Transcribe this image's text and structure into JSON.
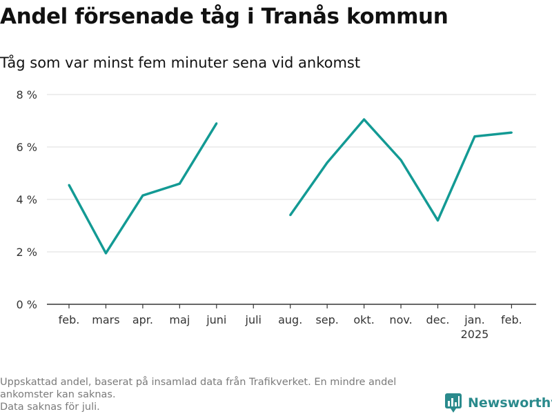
{
  "header": {
    "title": "Andel försenade tåg i Tranås kommun",
    "subtitle": "Tåg som var minst fem minuter sena vid ankomst"
  },
  "chart_data": {
    "type": "line",
    "title": "Andel försenade tåg i Tranås kommun",
    "subtitle": "Tåg som var minst fem minuter sena vid ankomst",
    "xlabel": "",
    "ylabel": "",
    "categories": [
      "feb.",
      "mars",
      "apr.",
      "maj",
      "juni",
      "juli",
      "aug.",
      "sep.",
      "okt.",
      "nov.",
      "dec.",
      "jan.",
      "feb."
    ],
    "x_sublabels": [
      "",
      "",
      "",
      "",
      "",
      "",
      "",
      "",
      "",
      "",
      "",
      "2025",
      ""
    ],
    "series": [
      {
        "values": [
          4.55,
          1.95,
          4.15,
          4.6,
          6.9,
          null,
          3.4,
          5.4,
          7.05,
          5.5,
          3.2,
          6.4,
          6.55
        ],
        "color": "#139a94"
      }
    ],
    "ylim": [
      0,
      8
    ],
    "yticks": [
      0,
      2,
      4,
      6,
      8
    ],
    "ytick_labels": [
      "0 %",
      "2 %",
      "4 %",
      "6 %",
      "8 %"
    ],
    "grid": true,
    "legend": "none"
  },
  "footer": {
    "note_lines": [
      "Uppskattad andel, baserat på insamlad data från Trafikverket. En mindre andel",
      "ankomster kan saknas.",
      "Data saknas för juli."
    ],
    "brand": "Newsworthy",
    "brand_icon": "newsworthy-logo-icon",
    "brand_color": "#2a8a8c"
  }
}
